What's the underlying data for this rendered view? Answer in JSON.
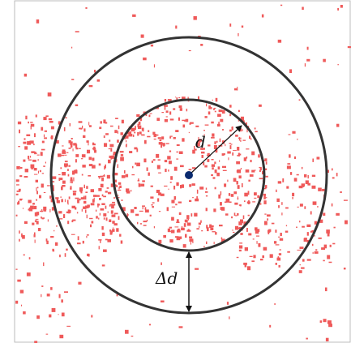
{
  "labels": {
    "radius": "d",
    "ring_width": "Δd"
  }
}
